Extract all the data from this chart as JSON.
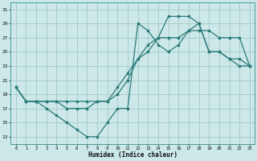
{
  "xlabel": "Humidex (Indice chaleur)",
  "bg_color": "#cce8e8",
  "line_color": "#2a7a7a",
  "grid_color": "#a8cccc",
  "xlim": [
    -0.5,
    23.5
  ],
  "ylim": [
    12,
    32
  ],
  "yticks": [
    13,
    15,
    17,
    19,
    21,
    23,
    25,
    27,
    29,
    31
  ],
  "xticks": [
    0,
    1,
    2,
    3,
    4,
    5,
    6,
    7,
    8,
    9,
    10,
    11,
    12,
    13,
    14,
    15,
    16,
    17,
    18,
    19,
    20,
    21,
    22,
    23
  ],
  "line1_x": [
    0,
    1,
    2,
    3,
    4,
    5,
    6,
    7,
    8,
    9,
    10,
    11,
    12,
    13,
    14,
    15,
    16,
    17,
    18,
    19,
    20,
    21,
    22,
    23
  ],
  "line1_y": [
    20,
    18,
    18,
    17,
    16,
    15,
    14,
    13,
    13,
    15,
    17,
    17,
    29,
    28,
    26,
    25,
    26,
    28,
    29,
    25,
    25,
    24,
    24,
    23
  ],
  "line2_x": [
    0,
    1,
    2,
    3,
    4,
    5,
    6,
    7,
    8,
    9,
    10,
    11,
    12,
    13,
    14,
    15,
    16,
    17,
    18,
    19,
    20,
    21,
    22,
    23
  ],
  "line2_y": [
    20,
    18,
    18,
    18,
    18,
    17,
    17,
    17,
    18,
    18,
    19,
    21,
    24,
    25,
    27,
    30,
    30,
    30,
    29,
    25,
    25,
    24,
    23,
    23
  ],
  "line3_x": [
    0,
    1,
    2,
    3,
    4,
    5,
    6,
    7,
    8,
    9,
    10,
    11,
    12,
    13,
    14,
    15,
    16,
    17,
    18,
    19,
    20,
    21,
    22,
    23
  ],
  "line3_y": [
    20,
    18,
    18,
    18,
    18,
    18,
    18,
    18,
    18,
    18,
    20,
    22,
    24,
    26,
    27,
    27,
    27,
    28,
    28,
    28,
    27,
    27,
    27,
    23
  ]
}
